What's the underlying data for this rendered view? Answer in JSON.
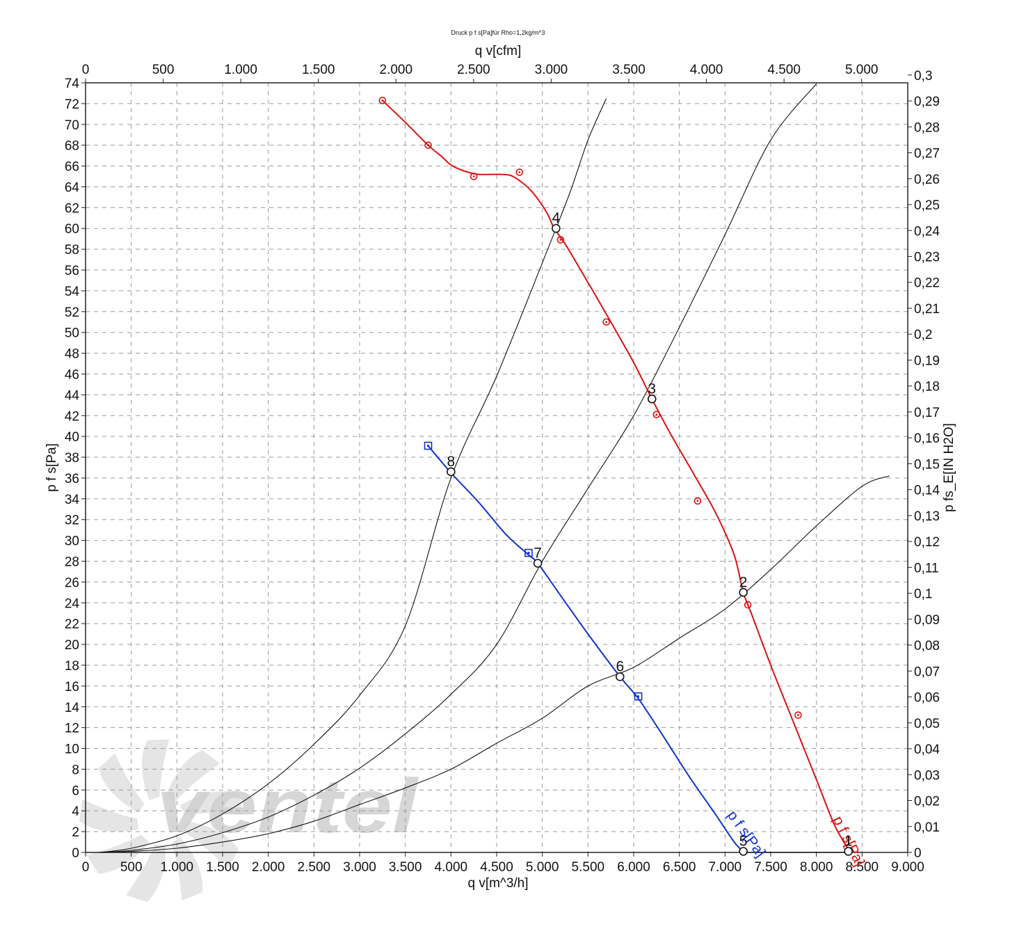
{
  "chart_data": {
    "type": "line",
    "title": "Druck p f s[Pa]für Rho=1,2kg/m^3",
    "xlabel": "q v[m^3/h]",
    "x2label": "q v[cfm]",
    "ylabel": "p f s[Pa]",
    "y2label": "p fs_E[IN H2O]",
    "xlim": [
      0,
      9000
    ],
    "ylim": [
      0,
      74
    ],
    "x2lim": [
      0,
      5297
    ],
    "y2lim": [
      0,
      0.297
    ],
    "grid": true,
    "x_ticks": [
      0,
      500,
      1000,
      1500,
      2000,
      2500,
      3000,
      3500,
      4000,
      4500,
      5000,
      5500,
      6000,
      6500,
      7000,
      7500,
      8000,
      8500,
      9000
    ],
    "x_tick_labels": [
      "0",
      "500",
      "1.000",
      "1.500",
      "2.000",
      "2.500",
      "3.000",
      "3.500",
      "4.000",
      "4.500",
      "5.000",
      "5.500",
      "6.000",
      "6.500",
      "7.000",
      "7.500",
      "8.000",
      "8.500",
      "9.000"
    ],
    "y_ticks": [
      0,
      2,
      4,
      6,
      8,
      10,
      12,
      14,
      16,
      18,
      20,
      22,
      24,
      26,
      28,
      30,
      32,
      34,
      36,
      38,
      40,
      42,
      44,
      46,
      48,
      50,
      52,
      54,
      56,
      58,
      60,
      62,
      64,
      66,
      68,
      70,
      72,
      74
    ],
    "y_tick_labels": [
      "0",
      "2",
      "4",
      "6",
      "8",
      "10",
      "12",
      "14",
      "16",
      "18",
      "20",
      "22",
      "24",
      "26",
      "28",
      "30",
      "32",
      "34",
      "36",
      "38",
      "40",
      "42",
      "44",
      "46",
      "48",
      "50",
      "52",
      "54",
      "56",
      "58",
      "60",
      "62",
      "64",
      "66",
      "68",
      "70",
      "72",
      "74"
    ],
    "x2_ticks": [
      0,
      500,
      1000,
      1500,
      2000,
      2500,
      3000,
      3500,
      4000,
      4500,
      5000
    ],
    "x2_tick_labels": [
      "0",
      "500",
      "1.000",
      "1.500",
      "2.000",
      "2.500",
      "3.000",
      "3.500",
      "4.000",
      "4.500",
      "5.000"
    ],
    "y2_ticks": [
      0,
      0.01,
      0.02,
      0.03,
      0.04,
      0.05,
      0.06,
      0.07,
      0.08,
      0.09,
      0.1,
      0.11,
      0.12,
      0.13,
      0.14,
      0.15,
      0.16,
      0.17,
      0.18,
      0.19,
      0.2,
      0.21,
      0.22,
      0.23,
      0.24,
      0.25,
      0.26,
      0.27,
      0.28,
      0.29,
      0.3
    ],
    "y2_tick_labels": [
      "0",
      "0,01",
      "0,02",
      "0,03",
      "0,04",
      "0,05",
      "0,06",
      "0,07",
      "0,08",
      "0,09",
      "0,1",
      "0,11",
      "0,12",
      "0,13",
      "0,14",
      "0,15",
      "0,16",
      "0,17",
      "0,18",
      "0,19",
      "0,2",
      "0,21",
      "0,22",
      "0,23",
      "0,24",
      "0,25",
      "0,26",
      "0,27",
      "0,28",
      "0,29",
      "0,3"
    ],
    "series": [
      {
        "name": "p f s[Pa]",
        "color": "#dd1111",
        "marker": "circle-dot",
        "curve": [
          [
            3250,
            72.3
          ],
          [
            3500,
            70.2
          ],
          [
            3750,
            68.0
          ],
          [
            3900,
            66.9
          ],
          [
            4000,
            66.1
          ],
          [
            4150,
            65.5
          ],
          [
            4300,
            65.2
          ],
          [
            4500,
            65.2
          ],
          [
            4650,
            65.1
          ],
          [
            4780,
            64.4
          ],
          [
            4900,
            63.4
          ],
          [
            5050,
            61.5
          ],
          [
            5130,
            60.0
          ],
          [
            5250,
            58.5
          ],
          [
            5500,
            54.8
          ],
          [
            5750,
            51.0
          ],
          [
            6000,
            47.1
          ],
          [
            6200,
            43.6
          ],
          [
            6400,
            40.3
          ],
          [
            6650,
            36.5
          ],
          [
            6900,
            32.6
          ],
          [
            7100,
            28.6
          ],
          [
            7200,
            25.0
          ],
          [
            7300,
            22.7
          ],
          [
            7500,
            18.0
          ],
          [
            7750,
            12.5
          ],
          [
            8000,
            7.0
          ],
          [
            8200,
            2.6
          ],
          [
            8350,
            0.3
          ]
        ],
        "markers": [
          [
            3250,
            72.3
          ],
          [
            3750,
            68.0
          ],
          [
            4250,
            65.0
          ],
          [
            4750,
            65.4
          ],
          [
            5200,
            58.9
          ],
          [
            5700,
            51.0
          ],
          [
            6250,
            42.1
          ],
          [
            6700,
            33.8
          ],
          [
            7250,
            23.8
          ],
          [
            7800,
            13.2
          ]
        ],
        "label_position": [
          8180,
          3.2
        ]
      },
      {
        "name": "p f s[Pa]",
        "color": "#1133cc",
        "marker": "square",
        "curve": [
          [
            3750,
            39.1
          ],
          [
            4000,
            36.5
          ],
          [
            4300,
            33.7
          ],
          [
            4600,
            30.6
          ],
          [
            4850,
            28.6
          ],
          [
            4950,
            27.8
          ],
          [
            5200,
            24.7
          ],
          [
            5500,
            21.0
          ],
          [
            5850,
            16.9
          ],
          [
            6050,
            14.8
          ],
          [
            6300,
            11.5
          ],
          [
            6600,
            7.4
          ],
          [
            6900,
            3.6
          ],
          [
            7100,
            1.0
          ],
          [
            7200,
            0.1
          ]
        ],
        "markers": [
          [
            3750,
            39.1
          ],
          [
            4850,
            28.8
          ],
          [
            6050,
            15.0
          ]
        ],
        "label_position": [
          7020,
          3.6
        ]
      }
    ],
    "system_curves": [
      {
        "name": "",
        "points": [
          [
            150,
            0
          ],
          [
            500,
            0.4
          ],
          [
            1000,
            1.6
          ],
          [
            1500,
            3.7
          ],
          [
            2000,
            6.6
          ],
          [
            2500,
            10.4
          ],
          [
            3000,
            15.1
          ],
          [
            3500,
            21.8
          ],
          [
            4000,
            36.0
          ],
          [
            4500,
            45.8
          ],
          [
            5000,
            56.7
          ],
          [
            5300,
            63.4
          ],
          [
            5500,
            68.5
          ],
          [
            5700,
            72.5
          ]
        ]
      },
      {
        "name": "",
        "points": [
          [
            150,
            0
          ],
          [
            500,
            0.2
          ],
          [
            1000,
            0.8
          ],
          [
            1500,
            1.9
          ],
          [
            2000,
            3.4
          ],
          [
            2500,
            5.5
          ],
          [
            3000,
            8.1
          ],
          [
            3500,
            11.4
          ],
          [
            4000,
            15.2
          ],
          [
            4500,
            20.0
          ],
          [
            5000,
            28.0
          ],
          [
            5500,
            35.0
          ],
          [
            6000,
            42.0
          ],
          [
            6500,
            50.5
          ],
          [
            7000,
            59.4
          ],
          [
            7500,
            68.5
          ],
          [
            8000,
            73.9
          ]
        ]
      },
      {
        "name": "",
        "points": [
          [
            150,
            0
          ],
          [
            500,
            0.1
          ],
          [
            1000,
            0.4
          ],
          [
            1500,
            1.0
          ],
          [
            2000,
            1.8
          ],
          [
            2500,
            3.0
          ],
          [
            3000,
            4.6
          ],
          [
            3500,
            6.2
          ],
          [
            4000,
            8.0
          ],
          [
            4500,
            10.5
          ],
          [
            5000,
            12.9
          ],
          [
            5500,
            16.0
          ],
          [
            6000,
            17.8
          ],
          [
            6500,
            20.6
          ],
          [
            7000,
            23.4
          ],
          [
            7500,
            27.2
          ],
          [
            8000,
            31.4
          ],
          [
            8500,
            35.2
          ],
          [
            8800,
            36.2
          ]
        ]
      }
    ],
    "operating_points": [
      {
        "label": "1",
        "x": 8350,
        "y": 0.1
      },
      {
        "label": "2",
        "x": 7200,
        "y": 25.0
      },
      {
        "label": "3",
        "x": 6200,
        "y": 43.6
      },
      {
        "label": "4",
        "x": 5150,
        "y": 60.0
      },
      {
        "label": "5",
        "x": 7200,
        "y": 0.1
      },
      {
        "label": "6",
        "x": 5850,
        "y": 16.9
      },
      {
        "label": "7",
        "x": 4950,
        "y": 27.8
      },
      {
        "label": "8",
        "x": 4000,
        "y": 36.6
      }
    ]
  },
  "watermark": {
    "text": "ventel",
    "color_main": "#cfcfcf",
    "color_accent": "#b8d4ec"
  }
}
